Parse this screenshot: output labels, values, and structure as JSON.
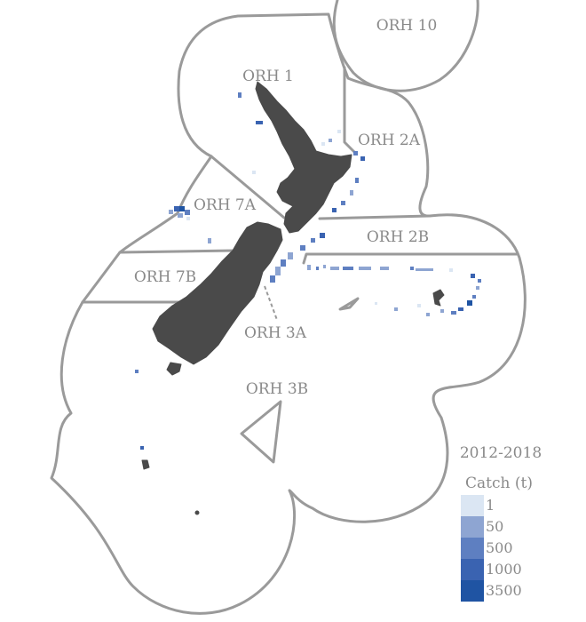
{
  "map": {
    "areas": [
      {
        "name": "ORH 10"
      },
      {
        "name": "ORH 1"
      },
      {
        "name": "ORH 2A"
      },
      {
        "name": "ORH 7A"
      },
      {
        "name": "ORH 2B"
      },
      {
        "name": "ORH 7B"
      },
      {
        "name": "ORH 3A"
      },
      {
        "name": "ORH 3B"
      }
    ]
  },
  "legend": {
    "period": "2012-2018",
    "title": "Catch (t)",
    "items": [
      {
        "label": "1",
        "color": "#dbe6f3"
      },
      {
        "label": "50",
        "color": "#8ea5d2"
      },
      {
        "label": "500",
        "color": "#5e7fc1"
      },
      {
        "label": "1000",
        "color": "#3a63b1"
      },
      {
        "label": "3500",
        "color": "#1f54a3"
      }
    ]
  },
  "colors": {
    "boundary": "#9a9a9a",
    "land": "#4a4a4a",
    "label": "#8a8a8a"
  }
}
